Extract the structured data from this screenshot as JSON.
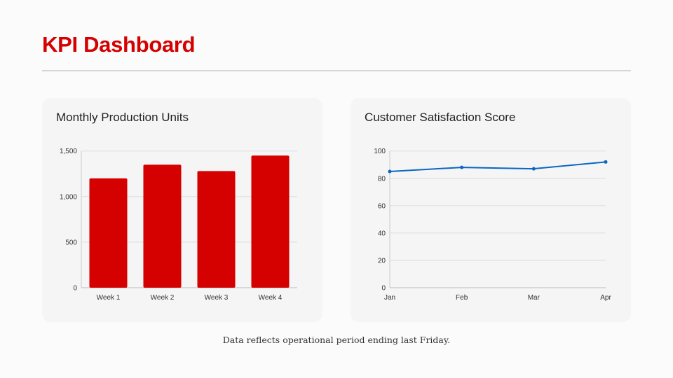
{
  "title": "KPI Dashboard",
  "footnote": "Data reflects operational period ending last Friday.",
  "colors": {
    "accent": "#d50000",
    "bar": "#d50000",
    "line": "#0a66c2"
  },
  "chart_data": [
    {
      "type": "bar",
      "title": "Monthly Production Units",
      "categories": [
        "Week 1",
        "Week 2",
        "Week 3",
        "Week 4"
      ],
      "values": [
        1200,
        1350,
        1280,
        1450
      ],
      "ylim": [
        0,
        1500
      ],
      "yticks": [
        "0",
        "500",
        "1,000",
        "1,500"
      ],
      "ytick_values": [
        0,
        500,
        1000,
        1500
      ],
      "grid": true
    },
    {
      "type": "line",
      "title": "Customer Satisfaction Score",
      "categories": [
        "Jan",
        "Feb",
        "Mar",
        "Apr"
      ],
      "values": [
        85,
        88,
        87,
        92
      ],
      "ylim": [
        0,
        100
      ],
      "yticks": [
        "0",
        "20",
        "40",
        "60",
        "80",
        "100"
      ],
      "ytick_values": [
        0,
        20,
        40,
        60,
        80,
        100
      ],
      "grid": true
    }
  ]
}
